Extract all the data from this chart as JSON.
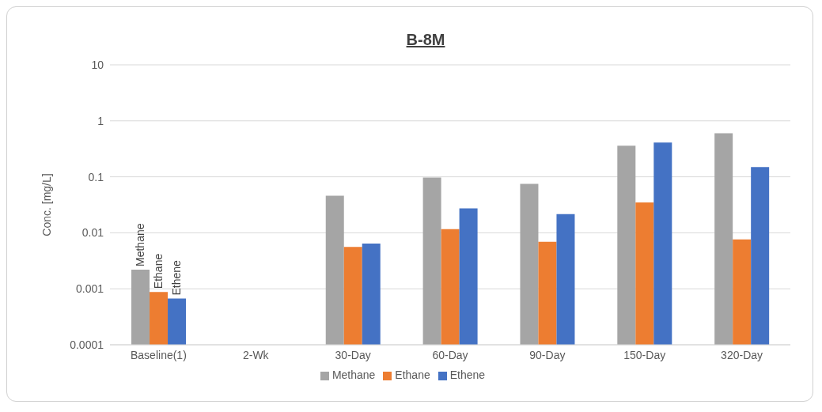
{
  "chart_data": {
    "type": "bar",
    "title": "B-8M",
    "ylabel": "Conc. [mg/L]",
    "categories": [
      "Baseline(1)",
      "2-Wk",
      "30-Day",
      "60-Day",
      "90-Day",
      "150-Day",
      "320-Day"
    ],
    "series": [
      {
        "name": "Methane",
        "color": "#a5a5a5",
        "values": [
          0.0022,
          null,
          0.046,
          0.097,
          0.075,
          0.36,
          0.6
        ]
      },
      {
        "name": "Ethane",
        "color": "#ed7d31",
        "values": [
          0.00088,
          null,
          0.0056,
          0.0116,
          0.0069,
          0.035,
          0.0076
        ]
      },
      {
        "name": "Ethene",
        "color": "#4472c4",
        "values": [
          0.00067,
          null,
          0.0064,
          0.0274,
          0.0216,
          0.41,
          0.15
        ]
      }
    ],
    "annotations": [
      "Methane",
      "Ethane",
      "Ethene"
    ],
    "log": true,
    "ylim": [
      0.0001,
      10
    ],
    "yticks": [
      0.0001,
      0.001,
      0.01,
      0.1,
      1,
      10
    ],
    "grid": "y",
    "legend": "bottom"
  }
}
